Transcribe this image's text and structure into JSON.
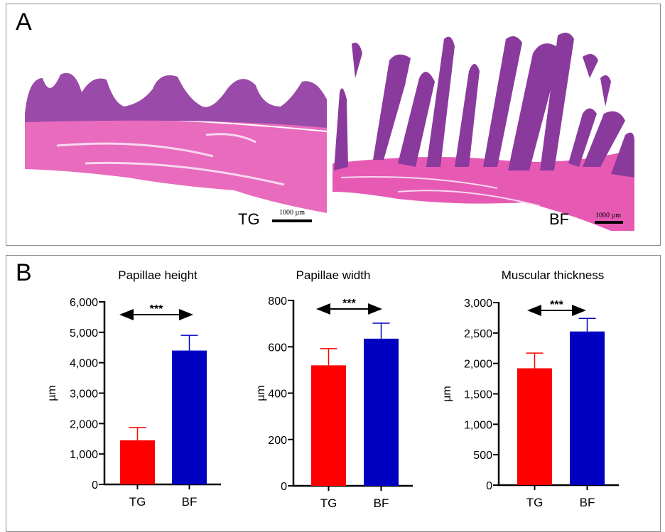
{
  "panel_a": {
    "label": "A",
    "images": [
      {
        "label": "TG",
        "scale_bar": "1000 µm"
      },
      {
        "label": "BF",
        "scale_bar": "1000 µm"
      }
    ]
  },
  "panel_b": {
    "label": "B"
  },
  "colors": {
    "TG": "#ff0000",
    "BF": "#0000c0",
    "tissue_pink": "#e65ab4",
    "tissue_purple": "#8a3a9c"
  },
  "chart_data": [
    {
      "type": "bar",
      "title": "Papillae height",
      "ylabel": "µm",
      "categories": [
        "TG",
        "BF"
      ],
      "values": [
        1450,
        4400
      ],
      "error_upper": [
        1870,
        4900
      ],
      "ylim": [
        0,
        6000
      ],
      "yticks": [
        0,
        1000,
        2000,
        3000,
        4000,
        5000,
        6000
      ],
      "ytick_labels": [
        "0",
        "1,000",
        "2,000",
        "3,000",
        "4,000",
        "5,000",
        "6,000"
      ],
      "annotation": "***"
    },
    {
      "type": "bar",
      "title": "Papillae width",
      "ylabel": "µm",
      "categories": [
        "TG",
        "BF"
      ],
      "values": [
        520,
        635
      ],
      "error_upper": [
        592,
        702
      ],
      "ylim": [
        0,
        800
      ],
      "yticks": [
        0,
        200,
        400,
        600,
        800
      ],
      "ytick_labels": [
        "0",
        "200",
        "400",
        "600",
        "800"
      ],
      "annotation": "***"
    },
    {
      "type": "bar",
      "title": "Muscular thickness",
      "ylabel": "µm",
      "categories": [
        "TG",
        "BF"
      ],
      "values": [
        1920,
        2525
      ],
      "error_upper": [
        2170,
        2740
      ],
      "ylim": [
        0,
        3000
      ],
      "yticks": [
        0,
        500,
        1000,
        1500,
        2000,
        2500,
        3000
      ],
      "ytick_labels": [
        "0",
        "500",
        "1,000",
        "1,500",
        "2,000",
        "2,500",
        "3,000"
      ],
      "annotation": "***"
    }
  ]
}
